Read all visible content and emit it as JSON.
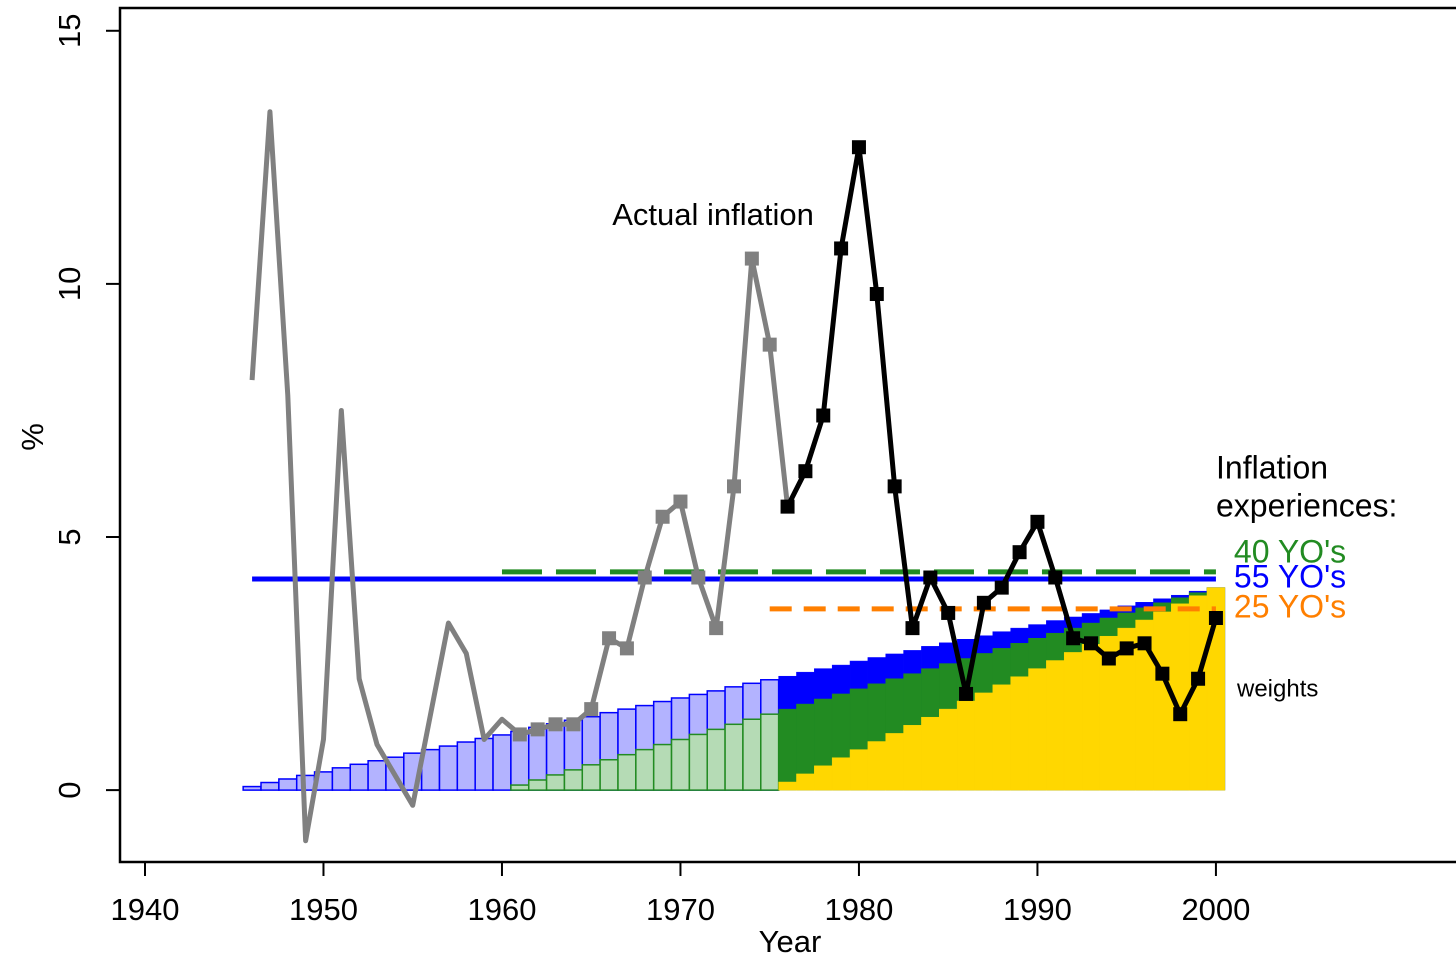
{
  "chart_data": {
    "type": "line",
    "xlabel": "Year",
    "ylabel": "%",
    "xlim": [
      1938.6,
      2013.45
    ],
    "ylim": [
      -1.42,
      15.45
    ],
    "xticks": [
      1940,
      1950,
      1960,
      1970,
      1980,
      1990,
      2000
    ],
    "yticks": [
      0,
      5,
      10,
      15
    ],
    "recent_from": 1976,
    "marker_from": 1961,
    "annotation": "Actual inflation",
    "experiences_title": [
      "Inflation",
      "experiences:"
    ],
    "weights_label": "weights",
    "x": [
      1946,
      1947,
      1948,
      1949,
      1950,
      1951,
      1952,
      1953,
      1954,
      1955,
      1956,
      1957,
      1958,
      1959,
      1960,
      1961,
      1962,
      1963,
      1964,
      1965,
      1966,
      1967,
      1968,
      1969,
      1970,
      1971,
      1972,
      1973,
      1974,
      1975,
      1976,
      1977,
      1978,
      1979,
      1980,
      1981,
      1982,
      1983,
      1984,
      1985,
      1986,
      1987,
      1988,
      1989,
      1990,
      1991,
      1992,
      1993,
      1994,
      1995,
      1996,
      1997,
      1998,
      1999,
      2000
    ],
    "series": [
      {
        "name": "Actual inflation",
        "color": "#808080",
        "recent_color": "#000000",
        "values": [
          8.1,
          13.4,
          7.8,
          -1.0,
          1.0,
          7.5,
          2.2,
          0.9,
          0.3,
          -0.3,
          1.5,
          3.3,
          2.7,
          1.0,
          1.4,
          1.1,
          1.2,
          1.3,
          1.3,
          1.6,
          3.0,
          2.8,
          4.2,
          5.4,
          5.7,
          4.2,
          3.2,
          6.0,
          10.5,
          8.8,
          5.6,
          6.3,
          7.4,
          10.7,
          12.7,
          9.8,
          6.0,
          3.2,
          4.2,
          3.5,
          1.9,
          3.7,
          4.0,
          4.7,
          5.3,
          4.2,
          3.0,
          2.9,
          2.6,
          2.8,
          2.9,
          2.3,
          1.5,
          2.2,
          3.4
        ]
      }
    ],
    "experiences": [
      {
        "name": "40 YO's",
        "color": "#228b22",
        "light_color": "#b5dbb5",
        "value": 4.31,
        "from": 1960,
        "dashed": true,
        "weights_from": 1961,
        "weights": [
          0.1,
          0.2,
          0.3,
          0.4,
          0.5,
          0.6,
          0.7,
          0.8,
          0.9,
          1.0,
          1.1,
          1.2,
          1.3,
          1.4,
          1.5,
          1.6,
          1.7,
          1.8,
          1.9,
          2.0,
          2.1,
          2.2,
          2.3,
          2.4,
          2.5,
          2.6,
          2.7,
          2.8,
          2.9,
          3.0,
          3.1,
          3.2,
          3.3,
          3.4,
          3.5,
          3.6,
          3.7,
          3.8,
          3.9,
          4.0
        ]
      },
      {
        "name": "55 YO's",
        "color": "#0000ff",
        "light_color": "#b3b3ff",
        "value": 4.17,
        "from": 1946,
        "dashed": false,
        "weights_from": 1946,
        "weights": [
          0.07,
          0.15,
          0.22,
          0.29,
          0.36,
          0.44,
          0.51,
          0.58,
          0.65,
          0.73,
          0.8,
          0.87,
          0.95,
          1.02,
          1.09,
          1.16,
          1.24,
          1.31,
          1.38,
          1.45,
          1.53,
          1.6,
          1.67,
          1.75,
          1.82,
          1.89,
          1.96,
          2.04,
          2.11,
          2.18,
          2.25,
          2.33,
          2.4,
          2.47,
          2.55,
          2.62,
          2.69,
          2.76,
          2.84,
          2.91,
          2.98,
          3.05,
          3.13,
          3.2,
          3.27,
          3.35,
          3.42,
          3.49,
          3.56,
          3.64,
          3.71,
          3.78,
          3.85,
          3.93,
          4.0
        ]
      },
      {
        "name": "25 YO's",
        "color": "#ff7f00",
        "light_color": "#ffd700",
        "bar_color": "#ffd700",
        "value": 3.58,
        "from": 1975,
        "dashed": true,
        "weights_from": 1976,
        "weights": [
          0.16,
          0.32,
          0.48,
          0.64,
          0.8,
          0.96,
          1.12,
          1.28,
          1.44,
          1.6,
          1.76,
          1.92,
          2.08,
          2.24,
          2.4,
          2.56,
          2.72,
          2.88,
          3.04,
          3.2,
          3.36,
          3.52,
          3.68,
          3.84,
          4.0
        ]
      }
    ]
  }
}
